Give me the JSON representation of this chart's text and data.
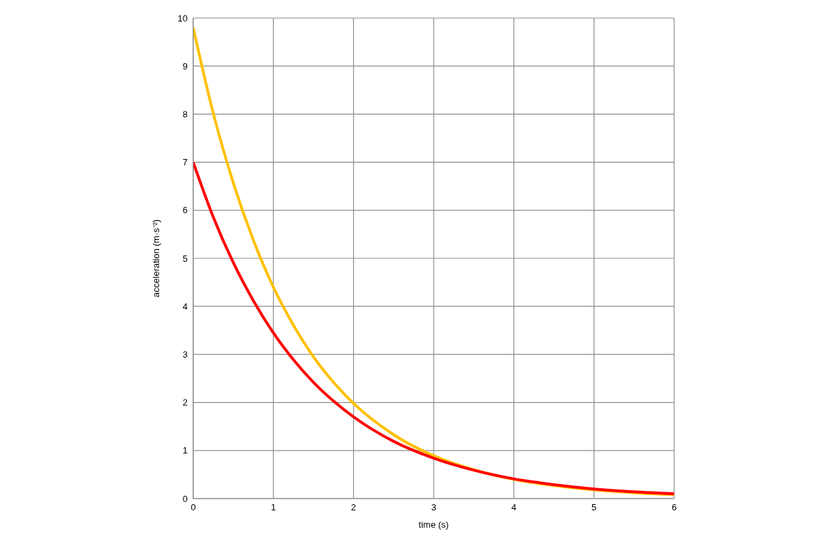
{
  "chart_data": {
    "type": "line",
    "xlabel": "time (s)",
    "ylabel": "acceleration (m·s⁻²)",
    "x": [
      0,
      0.25,
      0.5,
      0.75,
      1,
      1.25,
      1.5,
      1.75,
      2,
      2.5,
      3,
      3.5,
      4,
      4.5,
      5,
      5.5,
      6
    ],
    "series": [
      {
        "color": "#ffc000",
        "values": [
          9.8,
          8.02,
          6.57,
          5.38,
          4.4,
          3.61,
          2.95,
          2.42,
          1.98,
          1.33,
          0.89,
          0.6,
          0.4,
          0.27,
          0.18,
          0.12,
          0.08
        ]
      },
      {
        "color": "#ff0000",
        "values": [
          7,
          5.86,
          4.91,
          4.12,
          3.45,
          2.89,
          2.42,
          2.03,
          1.7,
          1.19,
          0.84,
          0.59,
          0.41,
          0.29,
          0.2,
          0.14,
          0.1
        ]
      }
    ],
    "xlim": [
      0,
      6
    ],
    "xticks": [
      0,
      1,
      2,
      3,
      4,
      5,
      6
    ],
    "ylim": [
      0,
      10
    ],
    "yticks": [
      0,
      1,
      2,
      3,
      4,
      5,
      6,
      7,
      8,
      9,
      10
    ],
    "grid": true,
    "legend": false,
    "marker": "none",
    "line_style": "solid"
  }
}
